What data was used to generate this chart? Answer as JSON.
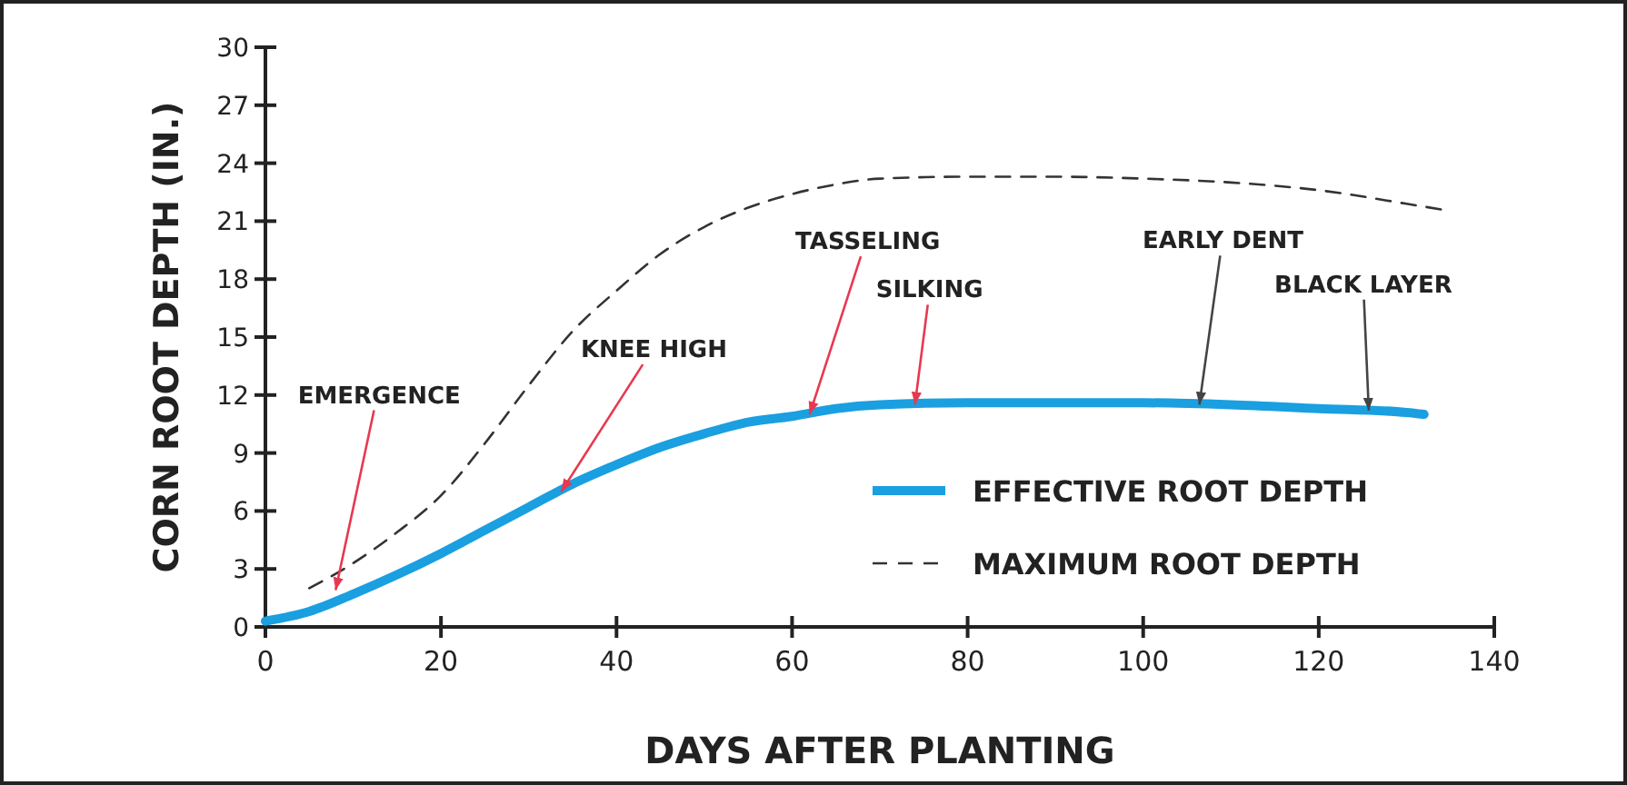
{
  "chart_data": {
    "type": "line",
    "xlabel": "DAYS AFTER PLANTING",
    "ylabel": "CORN ROOT DEPTH (IN.)",
    "xlim": [
      0,
      140
    ],
    "xticks": [
      0,
      20,
      40,
      60,
      80,
      100,
      120,
      140
    ],
    "ylim": [
      0,
      30
    ],
    "yticks": [
      0,
      3,
      6,
      9,
      12,
      15,
      18,
      21,
      24,
      27,
      30
    ],
    "legend": "bottom right",
    "grid": false,
    "series": [
      {
        "name": "EFFECTIVE ROOT DEPTH",
        "color": "#1a9fe0",
        "line_style": "solid",
        "x": [
          0,
          5,
          10,
          15,
          20,
          25,
          30,
          35,
          40,
          45,
          50,
          55,
          60,
          65,
          70,
          80,
          90,
          100,
          110,
          120,
          130,
          132
        ],
        "values": [
          0.3,
          0.8,
          1.7,
          2.7,
          3.8,
          5.0,
          6.2,
          7.4,
          8.4,
          9.3,
          10.0,
          10.6,
          10.9,
          11.3,
          11.5,
          11.6,
          11.6,
          11.6,
          11.5,
          11.3,
          11.1,
          11.0
        ]
      },
      {
        "name": "MAXIMUM ROOT DEPTH",
        "color": "#333333",
        "line_style": "dashed",
        "x": [
          5,
          10,
          15,
          20,
          25,
          30,
          35,
          40,
          45,
          50,
          55,
          60,
          65,
          70,
          80,
          90,
          100,
          110,
          120,
          130,
          134
        ],
        "values": [
          2.0,
          3.3,
          4.9,
          6.8,
          9.5,
          12.5,
          15.3,
          17.4,
          19.3,
          20.7,
          21.7,
          22.4,
          22.9,
          23.2,
          23.3,
          23.3,
          23.2,
          23.0,
          22.6,
          21.9,
          21.6
        ]
      }
    ],
    "annotations": [
      {
        "text": "EMERGENCE",
        "x": 8,
        "y": 1.9
      },
      {
        "text": "KNEE HIGH",
        "x": 33.7,
        "y": 7.0
      },
      {
        "text": "TASSELING",
        "x": 62,
        "y": 11.0
      },
      {
        "text": "SILKING",
        "x": 74,
        "y": 11.5
      },
      {
        "text": "EARLY DENT",
        "x": 106.4,
        "y": 11.5
      },
      {
        "text": "BLACK LAYER",
        "x": 125.7,
        "y": 11.2
      }
    ]
  }
}
